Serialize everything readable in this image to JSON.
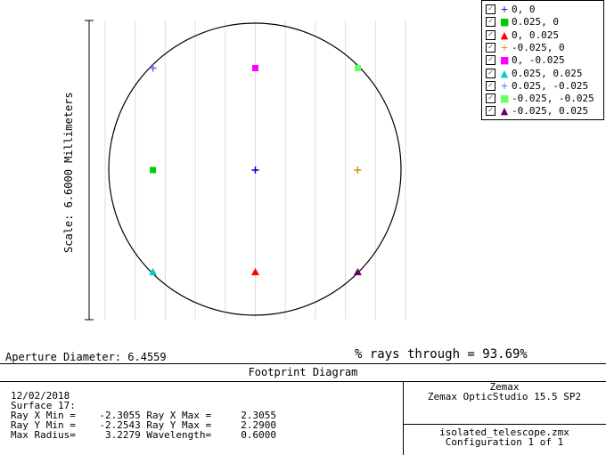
{
  "scale_label": "Scale: 6.6000 Millimeters",
  "aperture_diameter": "Aperture Diameter: 6.4559",
  "rays_through": "% rays through = 93.69%",
  "legend": [
    {
      "label": "0, 0",
      "symbol": "+",
      "color": "#0000cc",
      "icon": "plus-icon"
    },
    {
      "label": "0.025, 0",
      "symbol": "■",
      "color": "#00cc00",
      "icon": "square-icon"
    },
    {
      "label": "0, 0.025",
      "symbol": "▲",
      "color": "#ff0000",
      "icon": "triangle-icon"
    },
    {
      "label": "-0.025, 0",
      "symbol": "+",
      "color": "#cc9900",
      "icon": "plus-icon"
    },
    {
      "label": "0, -0.025",
      "symbol": "■",
      "color": "#ff00ff",
      "icon": "square-icon"
    },
    {
      "label": "0.025, 0.025",
      "symbol": "▲",
      "color": "#00cccc",
      "icon": "triangle-icon"
    },
    {
      "label": "0.025, -0.025",
      "symbol": "+",
      "color": "#6666ff",
      "icon": "plus-icon"
    },
    {
      "label": "-0.025, -0.025",
      "symbol": "■",
      "color": "#66ff66",
      "icon": "square-icon"
    },
    {
      "label": "-0.025, 0.025",
      "symbol": "▲",
      "color": "#660066",
      "icon": "triangle-icon"
    }
  ],
  "footer": {
    "title": "Footprint Diagram",
    "date": "12/02/2018",
    "surface": "Surface 17:",
    "line_x": "Ray X Min =    -2.3055 Ray X Max =     2.3055",
    "line_y": "Ray Y Min =    -2.2543 Ray Y Max =     2.2900",
    "line_r": "Max Radius=     3.2279 Wavelength=     0.6000",
    "company": "Zemax",
    "product": "Zemax OpticStudio 15.5 SP2",
    "file": "isolated_telescope.zmx",
    "configuration": "Configuration 1 of 1"
  },
  "chart_data": {
    "type": "scatter",
    "title": "Footprint Diagram",
    "units": "Millimeters",
    "scale_mm": 6.6,
    "aperture_diameter": 6.4559,
    "percent_rays_through": 93.69,
    "xlim": [
      -3.3,
      3.3
    ],
    "ylim": [
      -3.3,
      3.3
    ],
    "grid": "vertical",
    "legend_position": "top-right",
    "series": [
      {
        "name": "0, 0",
        "x": 0.0,
        "y": 0.0,
        "color": "#0000cc",
        "marker": "plus"
      },
      {
        "name": "0.025, 0",
        "x": -2.25,
        "y": 0.0,
        "color": "#00cc00",
        "marker": "square"
      },
      {
        "name": "0, 0.025",
        "x": 0.0,
        "y": -2.25,
        "color": "#ff0000",
        "marker": "triangle"
      },
      {
        "name": "-0.025, 0",
        "x": 2.25,
        "y": 0.0,
        "color": "#cc9900",
        "marker": "plus"
      },
      {
        "name": "0, -0.025",
        "x": 0.0,
        "y": 2.25,
        "color": "#ff00ff",
        "marker": "square"
      },
      {
        "name": "0.025, 0.025",
        "x": -2.25,
        "y": -2.25,
        "color": "#00cccc",
        "marker": "triangle"
      },
      {
        "name": "0.025, -0.025",
        "x": -2.25,
        "y": 2.25,
        "color": "#6666ff",
        "marker": "plus"
      },
      {
        "name": "-0.025, -0.025",
        "x": 2.25,
        "y": 2.25,
        "color": "#66ff66",
        "marker": "square"
      },
      {
        "name": "-0.025, 0.025",
        "x": 2.25,
        "y": -2.25,
        "color": "#660066",
        "marker": "triangle"
      }
    ]
  }
}
